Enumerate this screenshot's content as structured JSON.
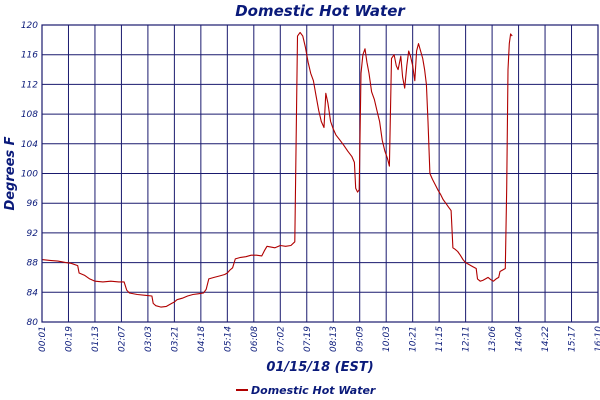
{
  "chart_data": {
    "type": "line",
    "title": "Domestic Hot Water",
    "xlabel": "01/15/18 (EST)",
    "ylabel": "Degrees F",
    "ylim": [
      80,
      120
    ],
    "yticks": [
      80,
      84,
      88,
      92,
      96,
      100,
      104,
      108,
      112,
      116,
      120
    ],
    "xtick_labels": [
      "00:01",
      "00:19",
      "01:13",
      "02:07",
      "03:03",
      "03:21",
      "04:18",
      "05:14",
      "06:08",
      "07:02",
      "07:19",
      "08:13",
      "09:09",
      "10:03",
      "10:21",
      "11:15",
      "12:11",
      "13:06",
      "14:04",
      "14:22",
      "15:17",
      "16:10"
    ],
    "grid": true,
    "legend_position": "bottom-center",
    "colors": {
      "line": "#b00000",
      "grid": "#1a1a6e",
      "text": "#0a1a7a"
    },
    "series": [
      {
        "name": "Domestic Hot Water",
        "points": [
          [
            0.0,
            88.4
          ],
          [
            0.3,
            88.3
          ],
          [
            0.6,
            88.2
          ],
          [
            0.9,
            88.0
          ],
          [
            1.1,
            87.9
          ],
          [
            1.35,
            87.6
          ],
          [
            1.4,
            86.6
          ],
          [
            1.6,
            86.3
          ],
          [
            1.8,
            85.8
          ],
          [
            2.0,
            85.5
          ],
          [
            2.3,
            85.4
          ],
          [
            2.6,
            85.5
          ],
          [
            2.9,
            85.4
          ],
          [
            3.1,
            85.4
          ],
          [
            3.2,
            84.3
          ],
          [
            3.3,
            83.9
          ],
          [
            3.6,
            83.7
          ],
          [
            3.9,
            83.6
          ],
          [
            4.15,
            83.5
          ],
          [
            4.2,
            82.5
          ],
          [
            4.3,
            82.2
          ],
          [
            4.5,
            82.0
          ],
          [
            4.7,
            82.1
          ],
          [
            4.9,
            82.5
          ],
          [
            5.0,
            82.7
          ],
          [
            5.1,
            83.0
          ],
          [
            5.3,
            83.2
          ],
          [
            5.5,
            83.5
          ],
          [
            5.7,
            83.7
          ],
          [
            5.9,
            83.8
          ],
          [
            6.1,
            83.9
          ],
          [
            6.2,
            84.4
          ],
          [
            6.3,
            85.8
          ],
          [
            6.5,
            86.0
          ],
          [
            6.7,
            86.2
          ],
          [
            6.9,
            86.4
          ],
          [
            7.0,
            86.6
          ],
          [
            7.1,
            87.0
          ],
          [
            7.2,
            87.3
          ],
          [
            7.3,
            88.5
          ],
          [
            7.5,
            88.7
          ],
          [
            7.7,
            88.8
          ],
          [
            7.9,
            89.0
          ],
          [
            8.1,
            89.0
          ],
          [
            8.3,
            88.9
          ],
          [
            8.4,
            89.6
          ],
          [
            8.5,
            90.2
          ],
          [
            8.8,
            90.0
          ],
          [
            9.0,
            90.3
          ],
          [
            9.2,
            90.2
          ],
          [
            9.4,
            90.3
          ],
          [
            9.55,
            90.8
          ],
          [
            9.65,
            118.5
          ],
          [
            9.75,
            119.0
          ],
          [
            9.85,
            118.5
          ],
          [
            9.95,
            117.0
          ],
          [
            10.05,
            115.0
          ],
          [
            10.15,
            113.5
          ],
          [
            10.25,
            112.5
          ],
          [
            10.35,
            110.5
          ],
          [
            10.45,
            108.5
          ],
          [
            10.55,
            107.0
          ],
          [
            10.65,
            106.2
          ],
          [
            10.72,
            110.8
          ],
          [
            10.8,
            109.5
          ],
          [
            10.9,
            107.0
          ],
          [
            11.0,
            106.0
          ],
          [
            11.1,
            105.2
          ],
          [
            11.25,
            104.5
          ],
          [
            11.4,
            103.8
          ],
          [
            11.55,
            103.0
          ],
          [
            11.7,
            102.3
          ],
          [
            11.8,
            101.5
          ],
          [
            11.85,
            98.0
          ],
          [
            11.92,
            97.5
          ],
          [
            11.98,
            97.8
          ],
          [
            12.05,
            113.5
          ],
          [
            12.12,
            116.0
          ],
          [
            12.2,
            116.8
          ],
          [
            12.27,
            115.0
          ],
          [
            12.35,
            113.5
          ],
          [
            12.45,
            111.0
          ],
          [
            12.55,
            110.0
          ],
          [
            12.65,
            108.5
          ],
          [
            12.75,
            107.0
          ],
          [
            12.85,
            104.5
          ],
          [
            12.95,
            103.0
          ],
          [
            13.05,
            102.0
          ],
          [
            13.12,
            101.0
          ],
          [
            13.2,
            115.5
          ],
          [
            13.3,
            116.0
          ],
          [
            13.38,
            114.5
          ],
          [
            13.45,
            114.0
          ],
          [
            13.55,
            115.8
          ],
          [
            13.62,
            113.0
          ],
          [
            13.7,
            111.5
          ],
          [
            13.78,
            114.5
          ],
          [
            13.85,
            116.5
          ],
          [
            13.92,
            115.8
          ],
          [
            14.0,
            114.5
          ],
          [
            14.08,
            112.5
          ],
          [
            14.15,
            116.5
          ],
          [
            14.22,
            117.5
          ],
          [
            14.3,
            116.5
          ],
          [
            14.38,
            115.5
          ],
          [
            14.45,
            114.0
          ],
          [
            14.52,
            112.0
          ],
          [
            14.58,
            107.0
          ],
          [
            14.65,
            100.0
          ],
          [
            14.75,
            99.2
          ],
          [
            14.85,
            98.5
          ],
          [
            14.95,
            97.8
          ],
          [
            15.05,
            97.2
          ],
          [
            15.15,
            96.5
          ],
          [
            15.25,
            96.0
          ],
          [
            15.35,
            95.5
          ],
          [
            15.45,
            95.0
          ],
          [
            15.52,
            90.0
          ],
          [
            15.6,
            89.8
          ],
          [
            15.7,
            89.5
          ],
          [
            15.8,
            89.0
          ],
          [
            15.9,
            88.4
          ],
          [
            16.0,
            88.0
          ],
          [
            16.1,
            87.8
          ],
          [
            16.2,
            87.6
          ],
          [
            16.3,
            87.4
          ],
          [
            16.4,
            87.2
          ],
          [
            16.45,
            85.8
          ],
          [
            16.55,
            85.5
          ],
          [
            16.65,
            85.6
          ],
          [
            16.75,
            85.8
          ],
          [
            16.85,
            86.0
          ],
          [
            16.95,
            85.7
          ],
          [
            17.05,
            85.5
          ],
          [
            17.15,
            85.8
          ],
          [
            17.25,
            86.0
          ],
          [
            17.3,
            86.8
          ],
          [
            17.4,
            87.0
          ],
          [
            17.5,
            87.2
          ],
          [
            17.55,
            98.0
          ],
          [
            17.6,
            114.0
          ],
          [
            17.65,
            117.5
          ],
          [
            17.7,
            118.8
          ],
          [
            17.76,
            118.5
          ]
        ]
      }
    ]
  }
}
